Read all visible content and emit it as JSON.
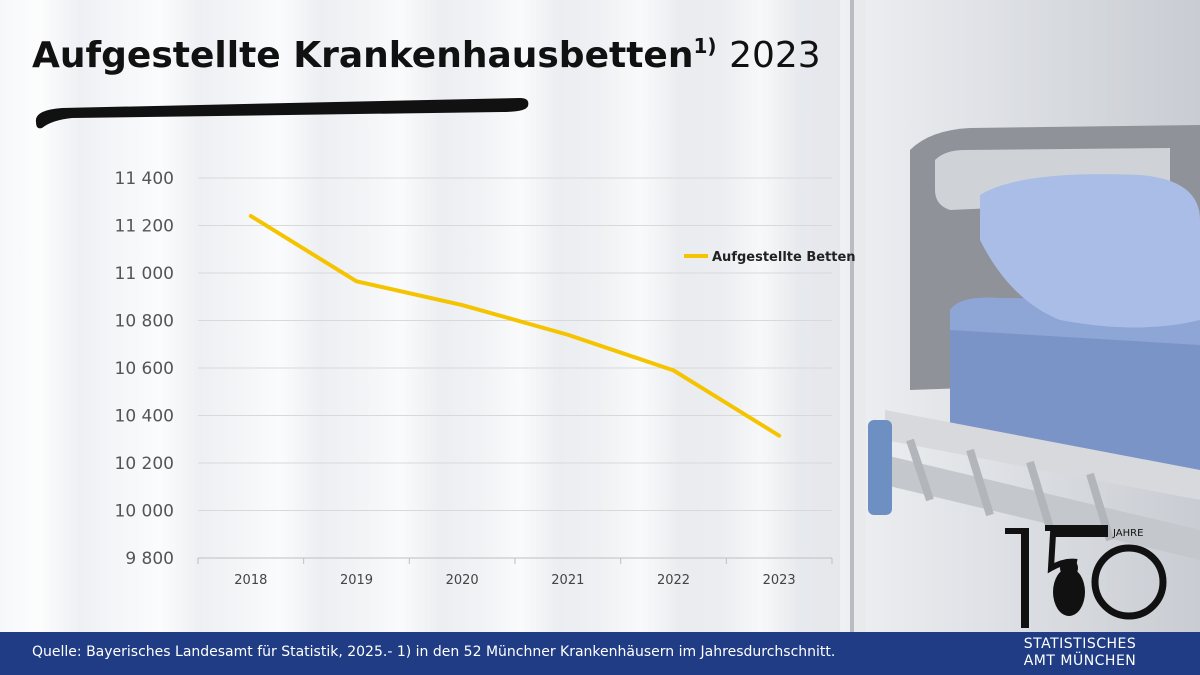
{
  "header": {
    "title": "Aufgestellte Krankenhausbetten",
    "footnote_marker": "1)",
    "year": "2023"
  },
  "colors": {
    "line": "#f5c400",
    "footer": "#1f3c84",
    "grid": "#d9d9d9"
  },
  "chart_data": {
    "type": "line",
    "title": "Aufgestellte Krankenhausbetten 2023",
    "xlabel": "",
    "ylabel": "",
    "x": [
      "2018",
      "2019",
      "2020",
      "2021",
      "2022",
      "2023"
    ],
    "y_ticks": [
      "9 800",
      "10 000",
      "10 200",
      "10 400",
      "10 600",
      "10 800",
      "11 000",
      "11 200",
      "11 400"
    ],
    "ylim": [
      9800,
      11400
    ],
    "grid": true,
    "legend_position": "top-right",
    "series": [
      {
        "name": "Aufgestellte Betten",
        "values": [
          11240,
          10965,
          10865,
          10740,
          10590,
          10315
        ]
      }
    ]
  },
  "footer": {
    "source": "Quelle: Bayerisches Landesamt für Statistik, 2025.- 1) in den 52 Münchner Krankenhäusern im Jahresdurchschnitt."
  },
  "logo": {
    "number": "150",
    "jahre": "JAHRE",
    "line1": "STATISTISCHES",
    "line2": "AMT MÜNCHEN"
  }
}
